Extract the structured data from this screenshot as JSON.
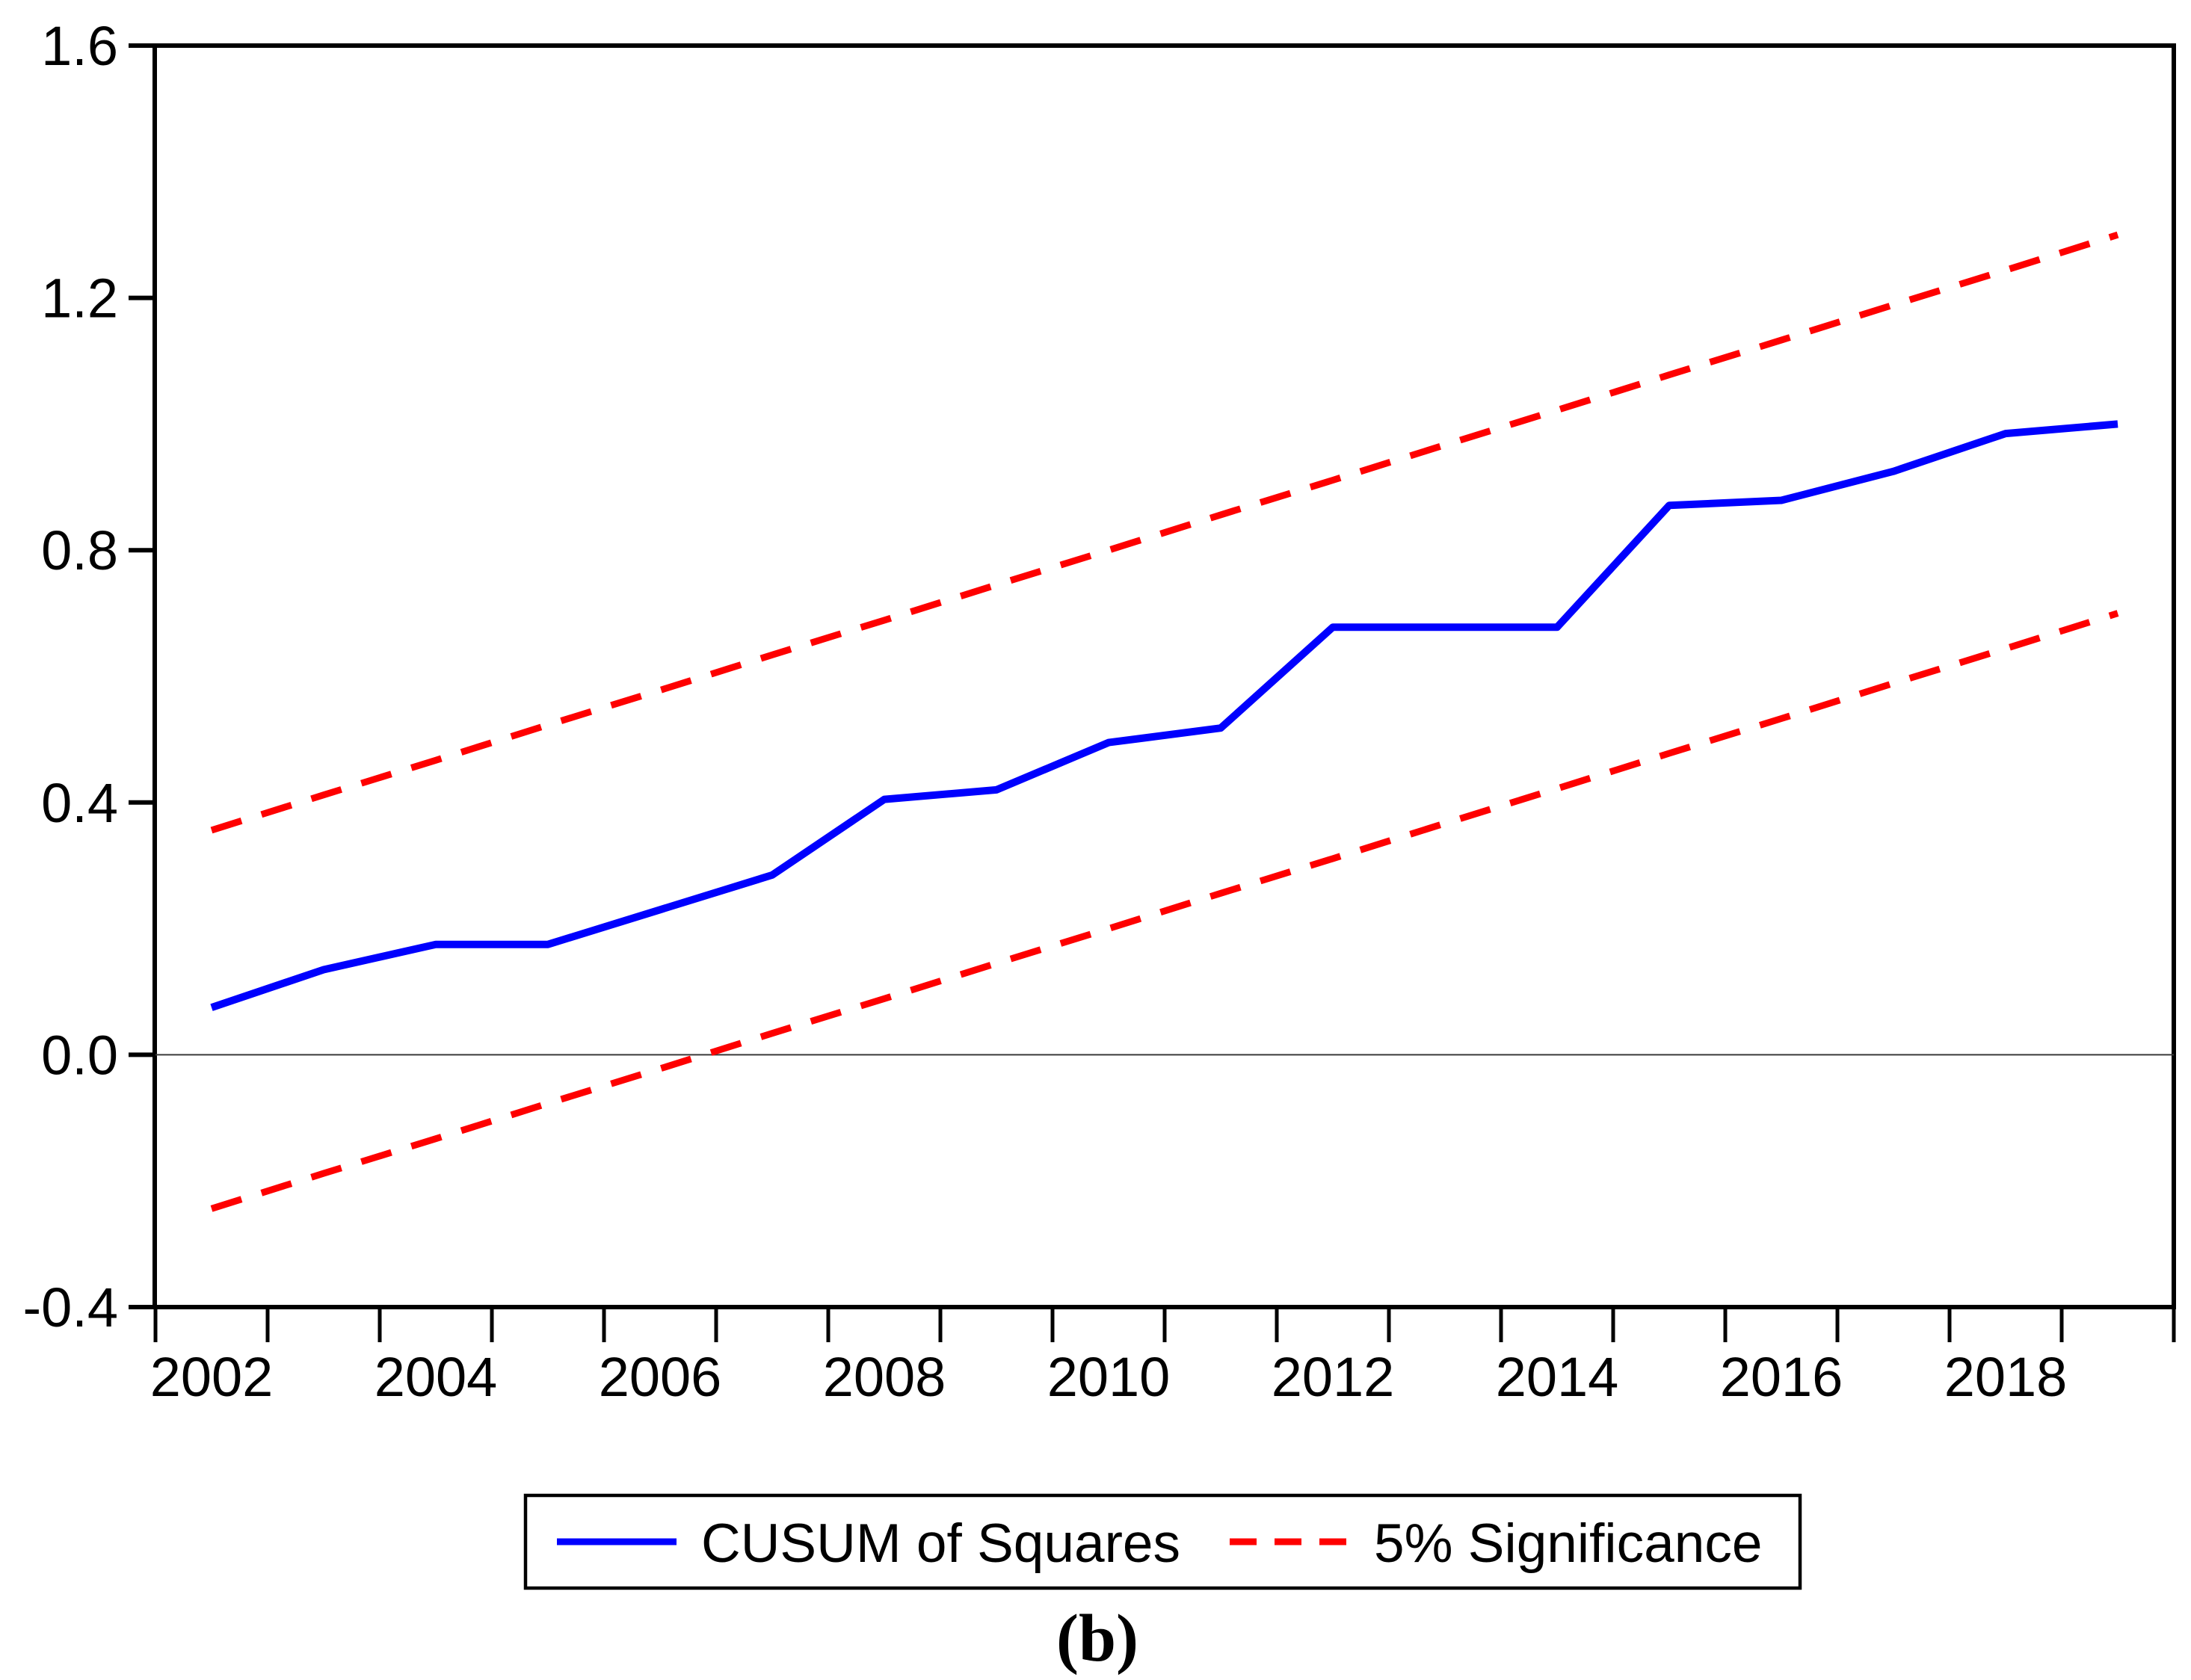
{
  "figure": {
    "caption": "(b)",
    "background_color": "#ffffff",
    "axis_color": "#000000",
    "zero_line_color": "#3a3a3a"
  },
  "legend": {
    "items": [
      {
        "label": "CUSUM of Squares",
        "color": "#0000fe",
        "line_style": "solid"
      },
      {
        "label": "5% Significance",
        "color": "#fe0000",
        "line_style": "dashed"
      }
    ]
  },
  "chart_data": {
    "type": "line",
    "title": "",
    "xlabel": "",
    "ylabel": "",
    "x": [
      2002,
      2003,
      2004,
      2005,
      2006,
      2007,
      2008,
      2009,
      2010,
      2011,
      2012,
      2013,
      2014,
      2015,
      2016,
      2017,
      2018,
      2019
    ],
    "series": [
      {
        "name": "CUSUM of Squares",
        "color": "#0000fe",
        "style": "solid",
        "values": [
          0.075,
          0.135,
          0.175,
          0.175,
          0.23,
          0.285,
          0.405,
          0.42,
          0.495,
          0.518,
          0.678,
          0.678,
          0.678,
          0.871,
          0.879,
          0.925,
          0.985,
          1.0
        ]
      },
      {
        "name": "5% Significance (upper band)",
        "color": "#fe0000",
        "style": "dashed",
        "values": [
          0.356,
          0.412,
          0.467,
          0.523,
          0.578,
          0.634,
          0.689,
          0.745,
          0.8,
          0.856,
          0.911,
          0.967,
          1.022,
          1.078,
          1.133,
          1.189,
          1.244,
          1.3
        ]
      },
      {
        "name": "5% Significance (lower band)",
        "color": "#fe0000",
        "style": "dashed",
        "values": [
          -0.244,
          -0.188,
          -0.133,
          -0.077,
          -0.022,
          0.034,
          0.089,
          0.145,
          0.2,
          0.256,
          0.311,
          0.367,
          0.422,
          0.478,
          0.533,
          0.589,
          0.644,
          0.7
        ]
      }
    ],
    "ylim": [
      -0.4,
      1.6
    ],
    "yticks": [
      "1.6",
      "1.2",
      "0.8",
      "0.4",
      "0.0",
      "-0.4"
    ],
    "ytick_values": [
      1.6,
      1.2,
      0.8,
      0.4,
      0.0,
      -0.4
    ],
    "xtick_labels": [
      "2002",
      "2004",
      "2006",
      "2008",
      "2010",
      "2012",
      "2014",
      "2016",
      "2018"
    ],
    "xtick_label_years": [
      2002,
      2004,
      2006,
      2008,
      2010,
      2012,
      2014,
      2016,
      2018
    ],
    "grid": "zero-line-only",
    "zero_line": 0,
    "legend_position": "bottom-center"
  }
}
